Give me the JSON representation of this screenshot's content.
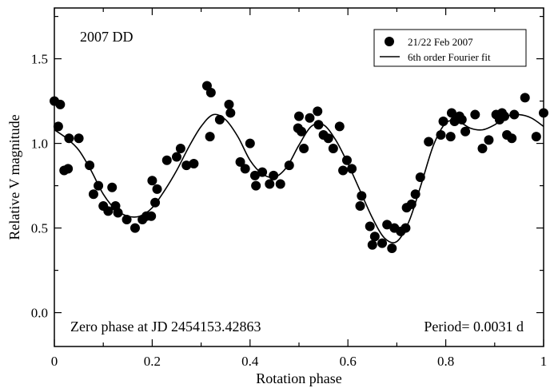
{
  "chart_data": {
    "type": "scatter",
    "title": "",
    "xlabel": "Rotation phase",
    "ylabel": "Relative V magnitude",
    "xlim": [
      0,
      1
    ],
    "ylim": [
      1.8,
      -0.2
    ],
    "y_inverted": true,
    "x_ticks": [
      0,
      0.2,
      0.4,
      0.6,
      0.8,
      1
    ],
    "x_tick_labels": [
      "0",
      "0.2",
      "0.4",
      "0.6",
      "0.8",
      "1"
    ],
    "y_ticks": [
      0.0,
      0.5,
      1.0,
      1.5
    ],
    "y_tick_labels": [
      "0.0",
      "0.5",
      "1.0",
      "1.5"
    ],
    "grid": false,
    "legend_position": "top-right",
    "annotations": {
      "object_name": "2007 DD",
      "zero_phase": "Zero phase at JD 2454153.42863",
      "period": "Period= 0.0031 d"
    },
    "series": [
      {
        "name": "21/22 Feb 2007",
        "kind": "points",
        "color": "#000000",
        "points": [
          [
            0.0,
            1.25
          ],
          [
            0.008,
            1.1
          ],
          [
            0.012,
            1.23
          ],
          [
            0.02,
            0.84
          ],
          [
            0.028,
            0.85
          ],
          [
            0.03,
            1.03
          ],
          [
            0.05,
            1.03
          ],
          [
            0.072,
            0.87
          ],
          [
            0.08,
            0.7
          ],
          [
            0.09,
            0.75
          ],
          [
            0.1,
            0.63
          ],
          [
            0.11,
            0.6
          ],
          [
            0.118,
            0.74
          ],
          [
            0.125,
            0.63
          ],
          [
            0.13,
            0.59
          ],
          [
            0.148,
            0.55
          ],
          [
            0.165,
            0.5
          ],
          [
            0.18,
            0.55
          ],
          [
            0.188,
            0.57
          ],
          [
            0.198,
            0.57
          ],
          [
            0.2,
            0.78
          ],
          [
            0.206,
            0.65
          ],
          [
            0.21,
            0.73
          ],
          [
            0.23,
            0.9
          ],
          [
            0.25,
            0.92
          ],
          [
            0.258,
            0.97
          ],
          [
            0.27,
            0.87
          ],
          [
            0.285,
            0.88
          ],
          [
            0.312,
            1.34
          ],
          [
            0.318,
            1.04
          ],
          [
            0.32,
            1.3
          ],
          [
            0.338,
            1.14
          ],
          [
            0.357,
            1.23
          ],
          [
            0.36,
            1.18
          ],
          [
            0.38,
            0.89
          ],
          [
            0.39,
            0.85
          ],
          [
            0.4,
            1.0
          ],
          [
            0.41,
            0.81
          ],
          [
            0.412,
            0.75
          ],
          [
            0.425,
            0.83
          ],
          [
            0.44,
            0.76
          ],
          [
            0.448,
            0.81
          ],
          [
            0.462,
            0.76
          ],
          [
            0.48,
            0.87
          ],
          [
            0.498,
            1.09
          ],
          [
            0.5,
            1.16
          ],
          [
            0.505,
            1.07
          ],
          [
            0.51,
            0.97
          ],
          [
            0.522,
            1.15
          ],
          [
            0.538,
            1.19
          ],
          [
            0.54,
            1.11
          ],
          [
            0.55,
            1.05
          ],
          [
            0.56,
            1.03
          ],
          [
            0.57,
            0.97
          ],
          [
            0.583,
            1.1
          ],
          [
            0.59,
            0.84
          ],
          [
            0.598,
            0.9
          ],
          [
            0.608,
            0.85
          ],
          [
            0.625,
            0.63
          ],
          [
            0.628,
            0.69
          ],
          [
            0.645,
            0.51
          ],
          [
            0.65,
            0.4
          ],
          [
            0.655,
            0.45
          ],
          [
            0.67,
            0.41
          ],
          [
            0.68,
            0.52
          ],
          [
            0.69,
            0.38
          ],
          [
            0.695,
            0.5
          ],
          [
            0.708,
            0.48
          ],
          [
            0.718,
            0.5
          ],
          [
            0.72,
            0.62
          ],
          [
            0.73,
            0.64
          ],
          [
            0.738,
            0.7
          ],
          [
            0.748,
            0.8
          ],
          [
            0.765,
            1.01
          ],
          [
            0.79,
            1.05
          ],
          [
            0.795,
            1.13
          ],
          [
            0.81,
            1.04
          ],
          [
            0.812,
            1.18
          ],
          [
            0.818,
            1.13
          ],
          [
            0.828,
            1.16
          ],
          [
            0.833,
            1.14
          ],
          [
            0.84,
            1.07
          ],
          [
            0.86,
            1.17
          ],
          [
            0.875,
            0.97
          ],
          [
            0.888,
            1.02
          ],
          [
            0.903,
            1.17
          ],
          [
            0.91,
            1.14
          ],
          [
            0.915,
            1.18
          ],
          [
            0.92,
            1.16
          ],
          [
            0.925,
            1.05
          ],
          [
            0.935,
            1.03
          ],
          [
            0.94,
            1.17
          ],
          [
            0.962,
            1.27
          ],
          [
            0.985,
            1.04
          ],
          [
            1.0,
            1.18
          ]
        ]
      },
      {
        "name": "6th order Fourier fit",
        "kind": "line",
        "color": "#000000",
        "points": [
          [
            0.0,
            1.08
          ],
          [
            0.025,
            1.03
          ],
          [
            0.05,
            0.96
          ],
          [
            0.075,
            0.84
          ],
          [
            0.1,
            0.7
          ],
          [
            0.125,
            0.61
          ],
          [
            0.15,
            0.57
          ],
          [
            0.175,
            0.57
          ],
          [
            0.2,
            0.62
          ],
          [
            0.225,
            0.72
          ],
          [
            0.25,
            0.84
          ],
          [
            0.275,
            0.98
          ],
          [
            0.3,
            1.1
          ],
          [
            0.325,
            1.17
          ],
          [
            0.35,
            1.14
          ],
          [
            0.375,
            1.04
          ],
          [
            0.4,
            0.9
          ],
          [
            0.425,
            0.82
          ],
          [
            0.45,
            0.8
          ],
          [
            0.475,
            0.86
          ],
          [
            0.5,
            0.99
          ],
          [
            0.525,
            1.1
          ],
          [
            0.55,
            1.11
          ],
          [
            0.575,
            1.02
          ],
          [
            0.6,
            0.88
          ],
          [
            0.625,
            0.72
          ],
          [
            0.65,
            0.56
          ],
          [
            0.675,
            0.44
          ],
          [
            0.7,
            0.42
          ],
          [
            0.725,
            0.54
          ],
          [
            0.75,
            0.76
          ],
          [
            0.775,
            0.99
          ],
          [
            0.8,
            1.12
          ],
          [
            0.825,
            1.13
          ],
          [
            0.85,
            1.09
          ],
          [
            0.875,
            1.08
          ],
          [
            0.9,
            1.11
          ],
          [
            0.925,
            1.16
          ],
          [
            0.95,
            1.17
          ],
          [
            0.975,
            1.15
          ],
          [
            1.0,
            1.1
          ]
        ]
      }
    ]
  }
}
